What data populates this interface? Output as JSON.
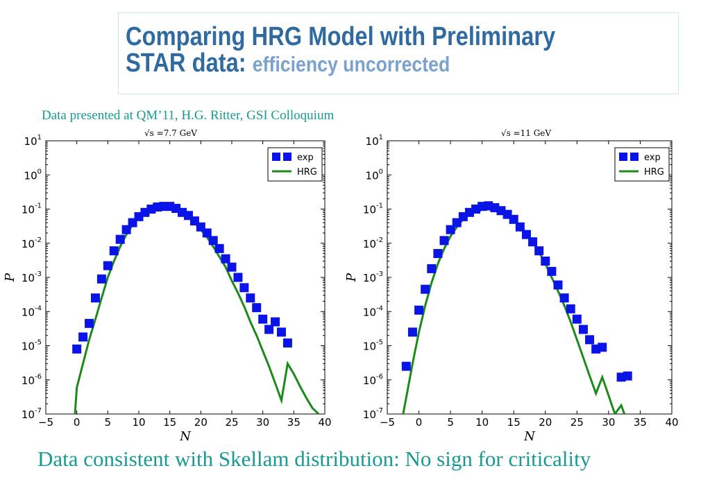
{
  "title": {
    "line1": "Comparing HRG Model with Preliminary",
    "line2_main": "STAR data:",
    "line2_sub": "efficiency uncorrected"
  },
  "source_note": "Data presented at QM’11,  H.G. Ritter, GSI Colloquium",
  "conclusion": "Data consistent with  Skellam distribution: No sign for criticality",
  "colors": {
    "title": "#2f6aa0",
    "title_sub": "#7aa2d0",
    "note_text": "#169a92",
    "exp_marker": "#0a14e6",
    "hrg_line": "#1b8a1b"
  },
  "chart_data": [
    {
      "type": "scatter",
      "title": "√s =7.7 GeV",
      "xlabel": "N",
      "ylabel": "P",
      "xlim": [
        -5,
        40
      ],
      "ylim": [
        1e-07,
        10
      ],
      "yscale": "log",
      "xticks": [
        "−5",
        "0",
        "5",
        "10",
        "15",
        "20",
        "25",
        "30",
        "35",
        "40"
      ],
      "yticks": [
        {
          "base": "10",
          "exp": "-7"
        },
        {
          "base": "10",
          "exp": "-6"
        },
        {
          "base": "10",
          "exp": "-5"
        },
        {
          "base": "10",
          "exp": "-4"
        },
        {
          "base": "10",
          "exp": "-3"
        },
        {
          "base": "10",
          "exp": "-2"
        },
        {
          "base": "10",
          "exp": "-1"
        },
        {
          "base": "10",
          "exp": "0"
        },
        {
          "base": "10",
          "exp": "1"
        }
      ],
      "legend": {
        "position": "top-right",
        "entries": [
          "exp",
          "HRG"
        ]
      },
      "series": [
        {
          "name": "exp",
          "kind": "markers",
          "x": [
            0,
            1,
            2,
            3,
            4,
            5,
            6,
            7,
            8,
            9,
            10,
            11,
            12,
            13,
            14,
            15,
            16,
            17,
            18,
            19,
            20,
            21,
            22,
            23,
            24,
            25,
            26,
            27,
            28,
            29,
            30,
            31,
            32,
            33,
            34
          ],
          "y": [
            8e-06,
            1.8e-05,
            4.5e-05,
            0.00025,
            0.0009,
            0.0022,
            0.006,
            0.013,
            0.025,
            0.04,
            0.06,
            0.08,
            0.1,
            0.115,
            0.12,
            0.12,
            0.105,
            0.08,
            0.065,
            0.045,
            0.03,
            0.02,
            0.012,
            0.007,
            0.0035,
            0.002,
            0.001,
            0.0005,
            0.00025,
            0.00013,
            6e-05,
            3e-05,
            5e-05,
            2.5e-05,
            1.2e-05
          ]
        },
        {
          "name": "HRG",
          "kind": "line",
          "x": [
            -0.3,
            0,
            1,
            2,
            3,
            4,
            5,
            6,
            7,
            8,
            9,
            10,
            11,
            12,
            13,
            14,
            15,
            16,
            17,
            18,
            19,
            20,
            21,
            22,
            23,
            24,
            25,
            26,
            27,
            28,
            29,
            30,
            31,
            32,
            33,
            34,
            35,
            36,
            37,
            38,
            39
          ],
          "y": [
            1e-07,
            6e-07,
            3e-06,
            1.5e-05,
            6e-05,
            0.00025,
            0.001,
            0.003,
            0.008,
            0.018,
            0.035,
            0.055,
            0.075,
            0.09,
            0.098,
            0.1,
            0.098,
            0.09,
            0.075,
            0.058,
            0.04,
            0.025,
            0.015,
            0.008,
            0.004,
            0.002,
            0.0008,
            0.00035,
            0.00014,
            5e-05,
            2e-05,
            7e-06,
            2.5e-06,
            8e-07,
            2.5e-07,
            3e-06,
            1.5e-06,
            6.5e-07,
            3e-07,
            1.5e-07,
            1e-07
          ]
        }
      ]
    },
    {
      "type": "scatter",
      "title": "√s =11 GeV",
      "xlabel": "N",
      "ylabel": "P",
      "xlim": [
        -5,
        40
      ],
      "ylim": [
        1e-07,
        10
      ],
      "yscale": "log",
      "xticks": [
        "−5",
        "0",
        "5",
        "10",
        "15",
        "20",
        "25",
        "30",
        "35",
        "40"
      ],
      "yticks": [
        {
          "base": "10",
          "exp": "-7"
        },
        {
          "base": "10",
          "exp": "-6"
        },
        {
          "base": "10",
          "exp": "-5"
        },
        {
          "base": "10",
          "exp": "-4"
        },
        {
          "base": "10",
          "exp": "-3"
        },
        {
          "base": "10",
          "exp": "-2"
        },
        {
          "base": "10",
          "exp": "-1"
        },
        {
          "base": "10",
          "exp": "0"
        },
        {
          "base": "10",
          "exp": "1"
        }
      ],
      "legend": {
        "position": "top-right",
        "entries": [
          "exp",
          "HRG"
        ]
      },
      "series": [
        {
          "name": "exp",
          "kind": "markers",
          "x": [
            -2,
            -1,
            0,
            1,
            2,
            3,
            4,
            5,
            6,
            7,
            8,
            9,
            10,
            11,
            12,
            13,
            14,
            15,
            16,
            17,
            18,
            19,
            20,
            21,
            22,
            23,
            24,
            25,
            26,
            27,
            28,
            29,
            32,
            33
          ],
          "y": [
            2.5e-06,
            2.5e-05,
            0.00011,
            0.00045,
            0.0018,
            0.005,
            0.012,
            0.025,
            0.04,
            0.06,
            0.08,
            0.1,
            0.12,
            0.125,
            0.11,
            0.09,
            0.07,
            0.05,
            0.03,
            0.018,
            0.011,
            0.006,
            0.003,
            0.0015,
            0.0006,
            0.00025,
            0.00012,
            6e-05,
            3e-05,
            1.5e-05,
            8e-06,
            9e-06,
            1.2e-06,
            1.3e-06
          ]
        },
        {
          "name": "HRG",
          "kind": "line",
          "x": [
            -2.5,
            -2,
            -1,
            0,
            1,
            2,
            3,
            4,
            5,
            6,
            7,
            8,
            9,
            10,
            11,
            12,
            13,
            14,
            15,
            16,
            17,
            18,
            19,
            20,
            21,
            22,
            23,
            24,
            25,
            26,
            27,
            28,
            29,
            30,
            31,
            32,
            32.5
          ],
          "y": [
            1e-07,
            3e-07,
            3e-06,
            2.5e-05,
            0.00015,
            0.0007,
            0.0025,
            0.007,
            0.016,
            0.03,
            0.05,
            0.07,
            0.085,
            0.095,
            0.098,
            0.095,
            0.085,
            0.07,
            0.05,
            0.033,
            0.02,
            0.011,
            0.0055,
            0.0025,
            0.001,
            0.0004,
            0.00015,
            5e-05,
            1.5e-05,
            4.5e-06,
            1.3e-06,
            4e-07,
            1.2e-06,
            3.5e-07,
            1e-07,
            1.8e-07,
            1e-07
          ]
        }
      ]
    }
  ]
}
